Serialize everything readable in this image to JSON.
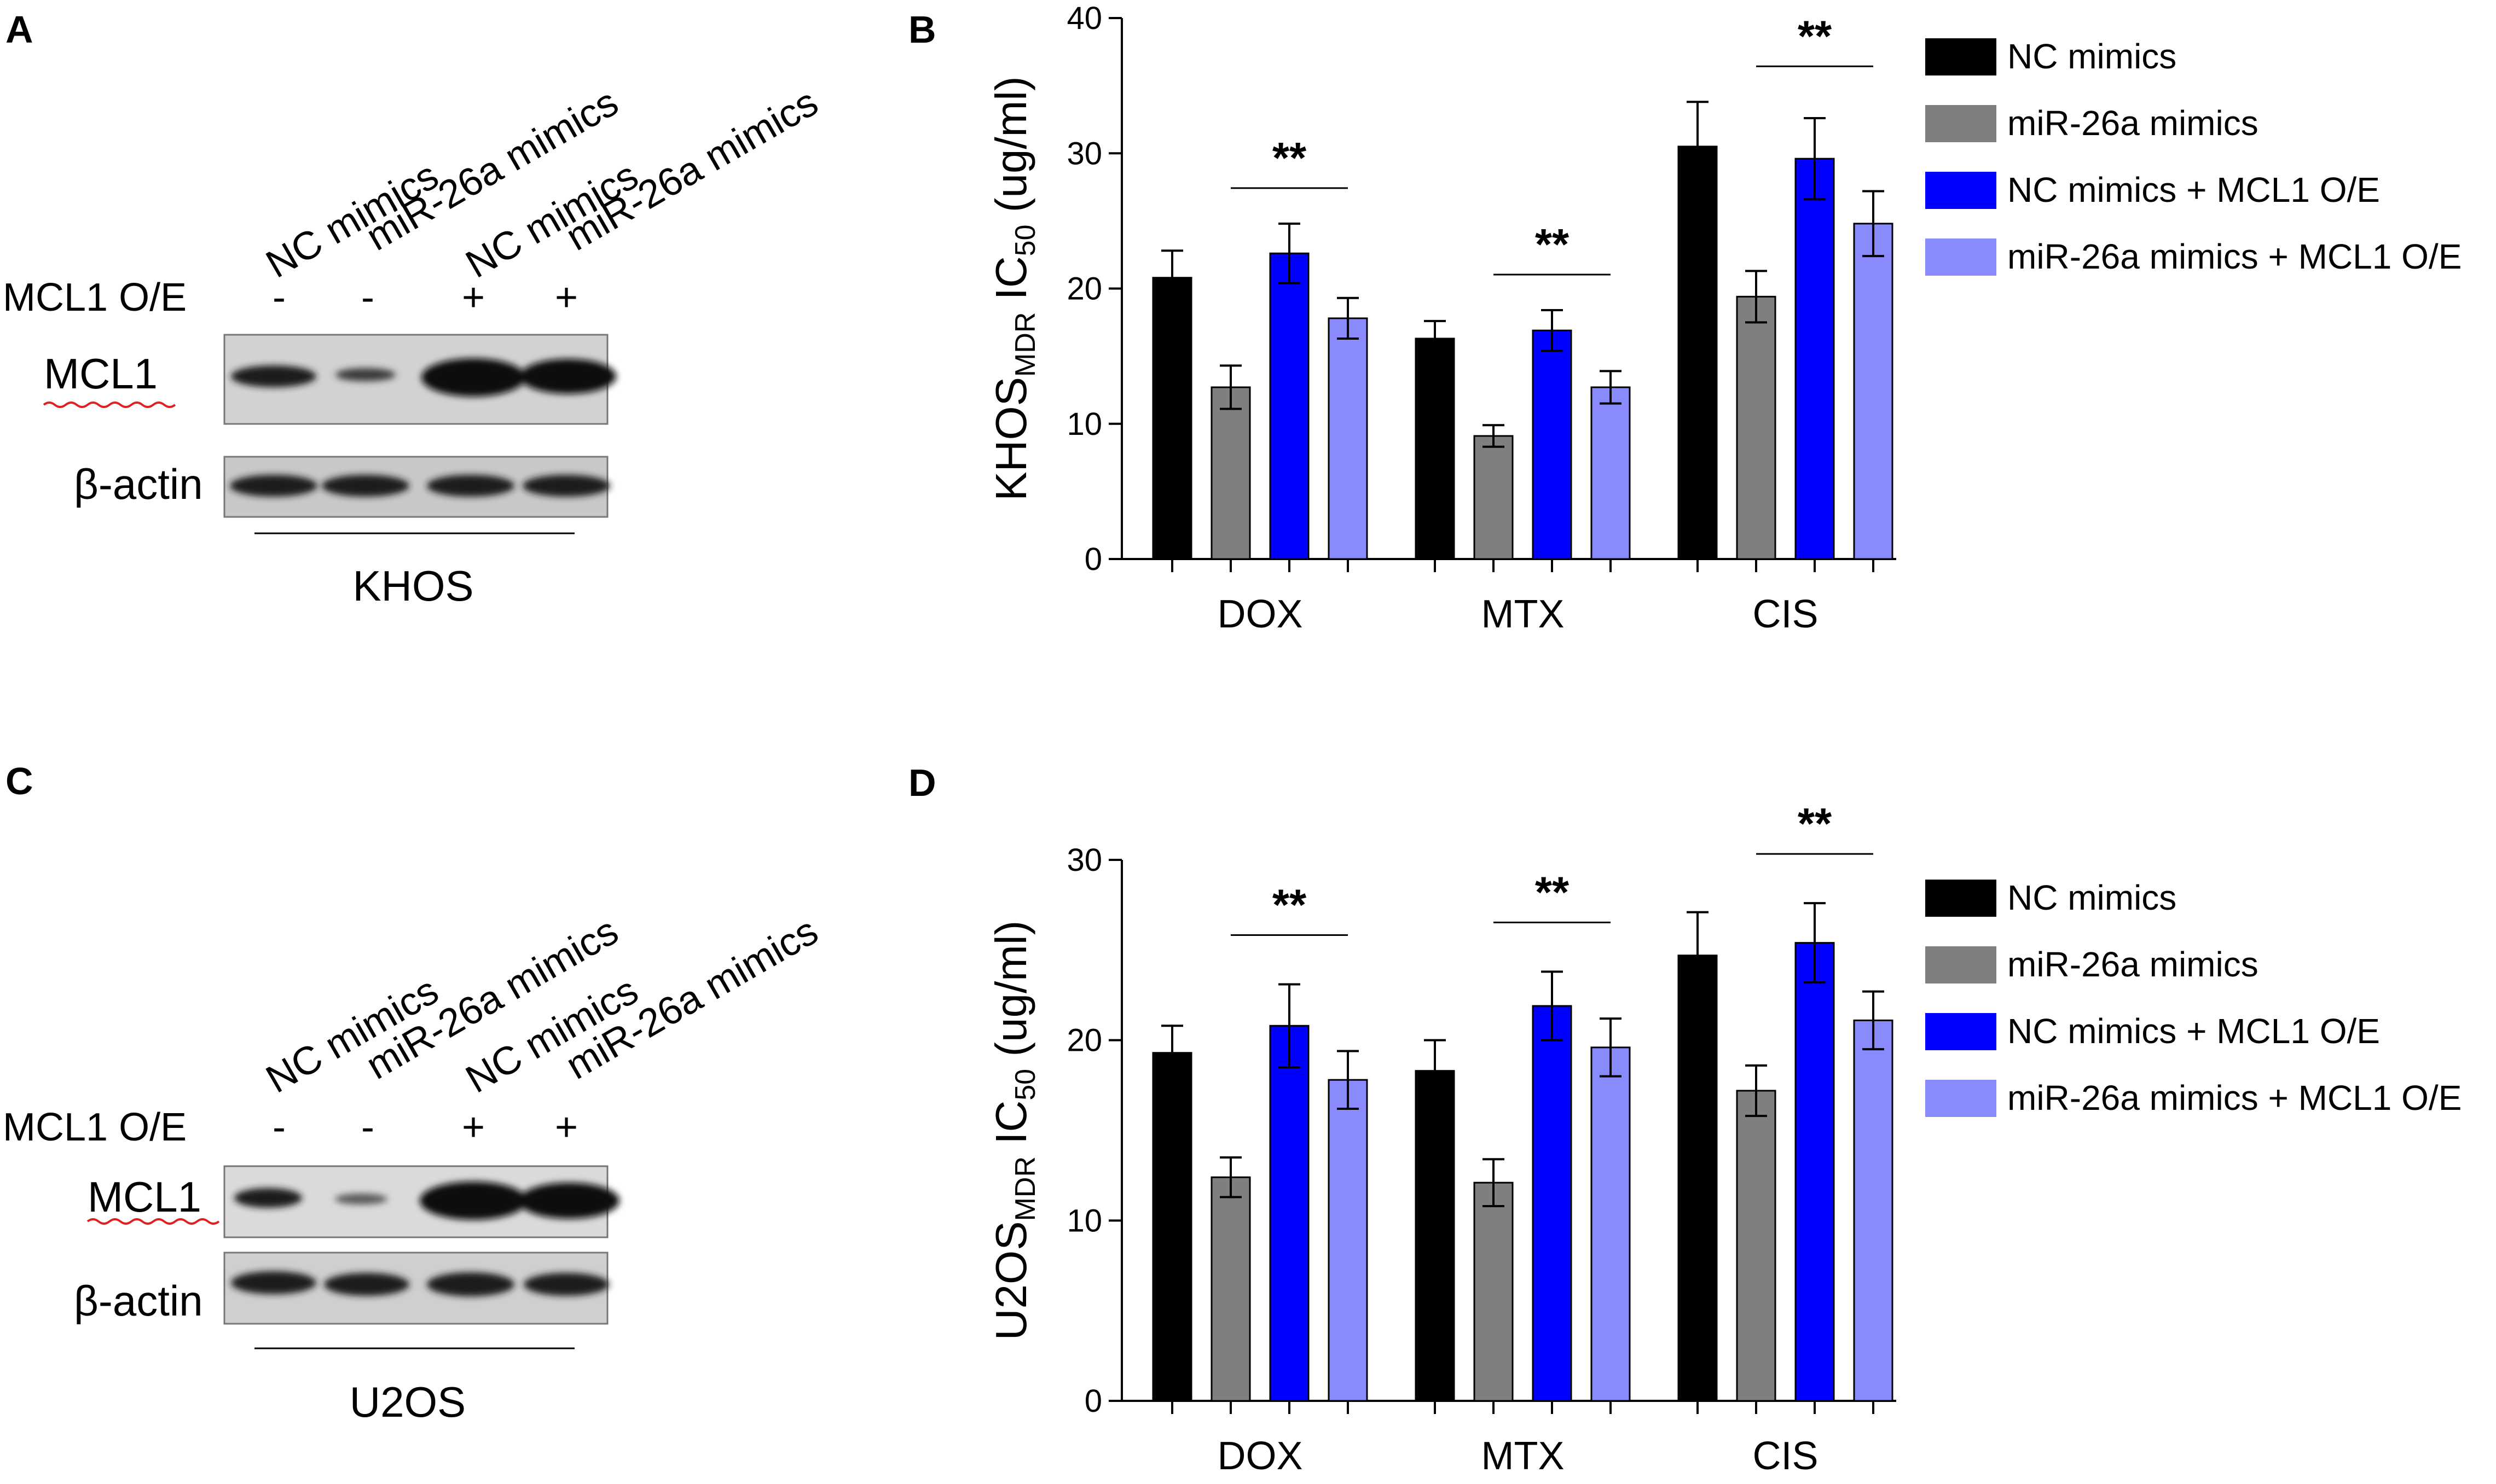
{
  "panels": {
    "a": {
      "letter": "A",
      "lanes": [
        "NC mimics",
        "miR-26a mimics",
        "NC mimics",
        "miR-26a mimics"
      ],
      "row_label": "MCL1 O/E",
      "signs": [
        "-",
        "-",
        "+",
        "+"
      ],
      "band_labels": [
        "MCL1",
        "β-actin"
      ],
      "cell_line": "KHOS"
    },
    "c": {
      "letter": "C",
      "lanes": [
        "NC mimics",
        "miR-26a mimics",
        "NC mimics",
        "miR-26a mimics"
      ],
      "row_label": "MCL1 O/E",
      "signs": [
        "-",
        "-",
        "+",
        "+"
      ],
      "band_labels": [
        "MCL1",
        "β-actin"
      ],
      "cell_line": "U2OS"
    }
  },
  "colors": {
    "nc": "#000000",
    "mir": "#7f7f7f",
    "nc_mcl1": "#0000ff",
    "mir_mcl1": "#8a8aff"
  },
  "chart_data": [
    {
      "panel": "B",
      "type": "bar",
      "ylabel_main": "KHOS",
      "ylabel_sub": "MDR",
      "ylabel_mid": " IC",
      "ylabel_sub2": "50",
      "ylabel_end": " (ug/ml)",
      "ylim": [
        0,
        40
      ],
      "yticks": [
        0,
        10,
        20,
        30,
        40
      ],
      "categories": [
        "DOX",
        "MTX",
        "CIS"
      ],
      "series": [
        {
          "name": "NC mimics",
          "values": [
            20.8,
            16.3,
            30.5
          ],
          "errors": [
            2.0,
            1.3,
            3.3
          ]
        },
        {
          "name": "miR-26a mimics",
          "values": [
            12.7,
            9.1,
            19.4
          ],
          "errors": [
            1.6,
            0.8,
            1.9
          ]
        },
        {
          "name": "NC mimics + MCL1 O/E",
          "values": [
            22.6,
            16.9,
            29.6
          ],
          "errors": [
            2.2,
            1.5,
            3.0
          ]
        },
        {
          "name": "miR-26a mimics + MCL1 O/E",
          "values": [
            17.8,
            12.7,
            24.8
          ],
          "errors": [
            1.5,
            1.2,
            2.4
          ]
        }
      ],
      "significance": [
        "**",
        "**",
        "**"
      ]
    },
    {
      "panel": "D",
      "type": "bar",
      "ylabel_main": "U2OS",
      "ylabel_sub": "MDR",
      "ylabel_mid": " IC",
      "ylabel_sub2": "50",
      "ylabel_end": " (ug/ml)",
      "ylim": [
        0,
        30
      ],
      "yticks": [
        0,
        10,
        20,
        30
      ],
      "categories": [
        "DOX",
        "MTX",
        "CIS"
      ],
      "series": [
        {
          "name": "NC mimics",
          "values": [
            19.3,
            18.3,
            24.7
          ],
          "errors": [
            1.5,
            1.7,
            2.4
          ]
        },
        {
          "name": "miR-26a mimics",
          "values": [
            12.4,
            12.1,
            17.2
          ],
          "errors": [
            1.1,
            1.3,
            1.4
          ]
        },
        {
          "name": "NC mimics + MCL1 O/E",
          "values": [
            20.8,
            21.9,
            25.4
          ],
          "errors": [
            2.3,
            1.9,
            2.2
          ]
        },
        {
          "name": "miR-26a mimics + MCL1 O/E",
          "values": [
            17.8,
            19.6,
            21.1
          ],
          "errors": [
            1.6,
            1.6,
            1.6
          ]
        }
      ],
      "significance": [
        "**",
        "**",
        "**"
      ]
    }
  ]
}
